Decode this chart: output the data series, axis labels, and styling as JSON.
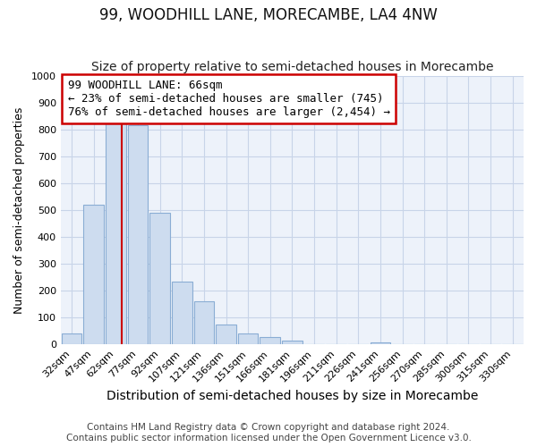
{
  "title": "99, WOODHILL LANE, MORECAMBE, LA4 4NW",
  "subtitle": "Size of property relative to semi-detached houses in Morecambe",
  "xlabel": "Distribution of semi-detached houses by size in Morecambe",
  "ylabel": "Number of semi-detached properties",
  "bin_labels": [
    "32sqm",
    "47sqm",
    "62sqm",
    "77sqm",
    "92sqm",
    "107sqm",
    "121sqm",
    "136sqm",
    "151sqm",
    "166sqm",
    "181sqm",
    "196sqm",
    "211sqm",
    "226sqm",
    "241sqm",
    "256sqm",
    "270sqm",
    "285sqm",
    "300sqm",
    "315sqm",
    "330sqm"
  ],
  "bar_heights": [
    42,
    520,
    830,
    815,
    490,
    235,
    160,
    75,
    42,
    28,
    15,
    0,
    0,
    0,
    8,
    0,
    0,
    0,
    0,
    0,
    0
  ],
  "bar_color": "#cddcef",
  "bar_edge_color": "#8aadd4",
  "property_label": "99 WOODHILL LANE: 66sqm",
  "vline_color": "#cc0000",
  "annotation_line1": "99 WOODHILL LANE: 66sqm",
  "annotation_line2": "← 23% of semi-detached houses are smaller (745)",
  "annotation_line3": "76% of semi-detached houses are larger (2,454) →",
  "annotation_box_edge": "#cc0000",
  "annotation_box_bg": "#ffffff",
  "ylim": [
    0,
    1000
  ],
  "yticks": [
    0,
    100,
    200,
    300,
    400,
    500,
    600,
    700,
    800,
    900,
    1000
  ],
  "grid_color": "#c8d4e8",
  "bg_color": "#edf2fa",
  "footer1": "Contains HM Land Registry data © Crown copyright and database right 2024.",
  "footer2": "Contains public sector information licensed under the Open Government Licence v3.0.",
  "title_fontsize": 12,
  "subtitle_fontsize": 10,
  "xlabel_fontsize": 10,
  "ylabel_fontsize": 9,
  "tick_fontsize": 8,
  "footer_fontsize": 7.5,
  "vline_x": 2.27
}
